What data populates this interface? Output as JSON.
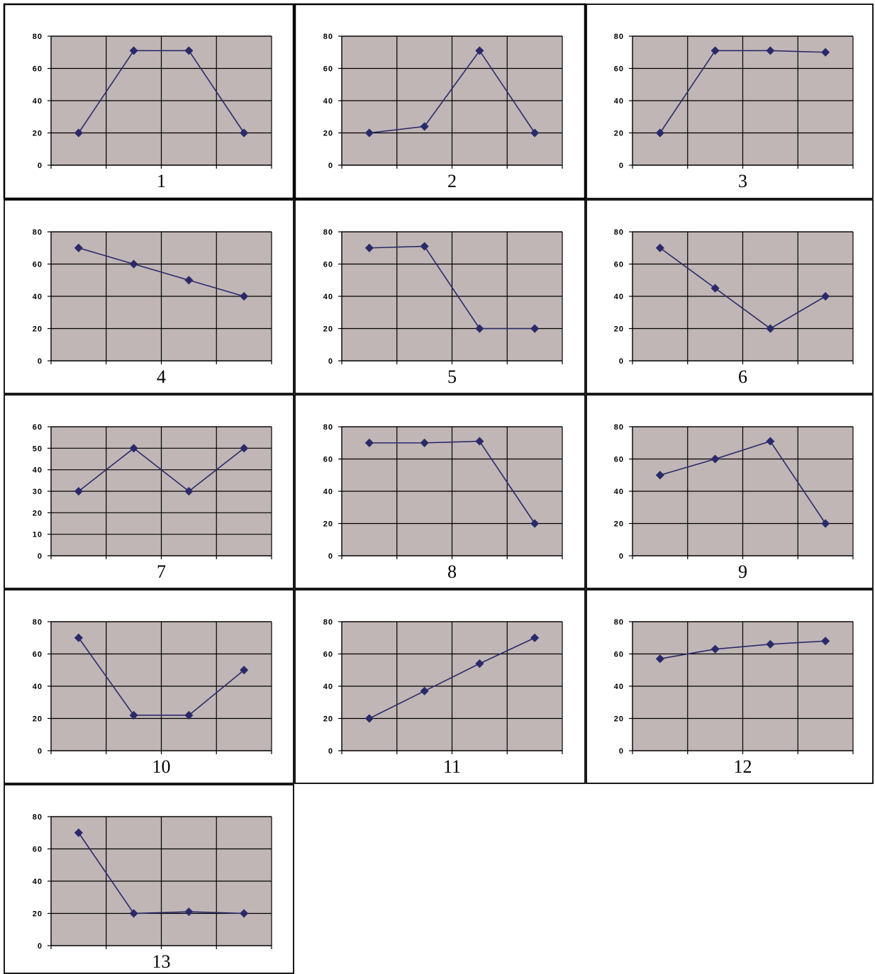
{
  "colors": {
    "plot_background": "#c0b6b5",
    "gridline": "#000000",
    "series_line": "#2a2a6a",
    "marker": "#2a2a6a",
    "cell_border": "#000000"
  },
  "chart_data": [
    {
      "type": "line",
      "label": "1",
      "ylim": [
        0,
        80
      ],
      "yticks": [
        0,
        20,
        40,
        60,
        80
      ],
      "categories": [
        "",
        "",
        "",
        ""
      ],
      "values": [
        20,
        71,
        71,
        20
      ],
      "marker": "diamond",
      "grid": true,
      "legend": "none"
    },
    {
      "type": "line",
      "label": "2",
      "ylim": [
        0,
        80
      ],
      "yticks": [
        0,
        20,
        40,
        60,
        80
      ],
      "categories": [
        "",
        "",
        "",
        ""
      ],
      "values": [
        20,
        24,
        71,
        20
      ],
      "marker": "diamond",
      "grid": true,
      "legend": "none"
    },
    {
      "type": "line",
      "label": "3",
      "ylim": [
        0,
        80
      ],
      "yticks": [
        0,
        20,
        40,
        60,
        80
      ],
      "categories": [
        "",
        "",
        "",
        ""
      ],
      "values": [
        20,
        71,
        71,
        70
      ],
      "marker": "diamond",
      "grid": true,
      "legend": "none"
    },
    {
      "type": "line",
      "label": "4",
      "ylim": [
        0,
        80
      ],
      "yticks": [
        0,
        20,
        40,
        60,
        80
      ],
      "categories": [
        "",
        "",
        "",
        ""
      ],
      "values": [
        70,
        60,
        50,
        40
      ],
      "marker": "diamond",
      "grid": true,
      "legend": "none"
    },
    {
      "type": "line",
      "label": "5",
      "ylim": [
        0,
        80
      ],
      "yticks": [
        0,
        20,
        40,
        60,
        80
      ],
      "categories": [
        "",
        "",
        "",
        ""
      ],
      "values": [
        70,
        71,
        20,
        20
      ],
      "marker": "diamond",
      "grid": true,
      "legend": "none"
    },
    {
      "type": "line",
      "label": "6",
      "ylim": [
        0,
        80
      ],
      "yticks": [
        0,
        20,
        40,
        60,
        80
      ],
      "categories": [
        "",
        "",
        "",
        ""
      ],
      "values": [
        70,
        45,
        20,
        40
      ],
      "marker": "diamond",
      "grid": true,
      "legend": "none"
    },
    {
      "type": "line",
      "label": "7",
      "ylim": [
        0,
        60
      ],
      "yticks": [
        0,
        10,
        20,
        30,
        40,
        50,
        60
      ],
      "categories": [
        "",
        "",
        "",
        ""
      ],
      "values": [
        30,
        50,
        30,
        50
      ],
      "marker": "diamond",
      "grid": true,
      "legend": "none"
    },
    {
      "type": "line",
      "label": "8",
      "ylim": [
        0,
        80
      ],
      "yticks": [
        0,
        20,
        40,
        60,
        80
      ],
      "categories": [
        "",
        "",
        "",
        ""
      ],
      "values": [
        70,
        70,
        71,
        20
      ],
      "marker": "diamond",
      "grid": true,
      "legend": "none"
    },
    {
      "type": "line",
      "label": "9",
      "ylim": [
        0,
        80
      ],
      "yticks": [
        0,
        20,
        40,
        60,
        80
      ],
      "categories": [
        "",
        "",
        "",
        ""
      ],
      "values": [
        50,
        60,
        71,
        20
      ],
      "marker": "diamond",
      "grid": true,
      "legend": "none"
    },
    {
      "type": "line",
      "label": "10",
      "ylim": [
        0,
        80
      ],
      "yticks": [
        0,
        20,
        40,
        60,
        80
      ],
      "categories": [
        "",
        "",
        "",
        ""
      ],
      "values": [
        70,
        22,
        22,
        50
      ],
      "marker": "diamond",
      "grid": true,
      "legend": "none"
    },
    {
      "type": "line",
      "label": "11",
      "ylim": [
        0,
        80
      ],
      "yticks": [
        0,
        20,
        40,
        60,
        80
      ],
      "categories": [
        "",
        "",
        "",
        ""
      ],
      "values": [
        20,
        37,
        54,
        70
      ],
      "marker": "diamond",
      "grid": true,
      "legend": "none"
    },
    {
      "type": "line",
      "label": "12",
      "ylim": [
        0,
        80
      ],
      "yticks": [
        0,
        20,
        40,
        60,
        80
      ],
      "categories": [
        "",
        "",
        "",
        ""
      ],
      "values": [
        57,
        63,
        66,
        68
      ],
      "marker": "diamond",
      "grid": true,
      "legend": "none"
    },
    {
      "type": "line",
      "label": "13",
      "ylim": [
        0,
        80
      ],
      "yticks": [
        0,
        20,
        40,
        60,
        80
      ],
      "categories": [
        "",
        "",
        "",
        ""
      ],
      "values": [
        70,
        20,
        21,
        20
      ],
      "marker": "diamond",
      "grid": true,
      "legend": "none"
    }
  ]
}
